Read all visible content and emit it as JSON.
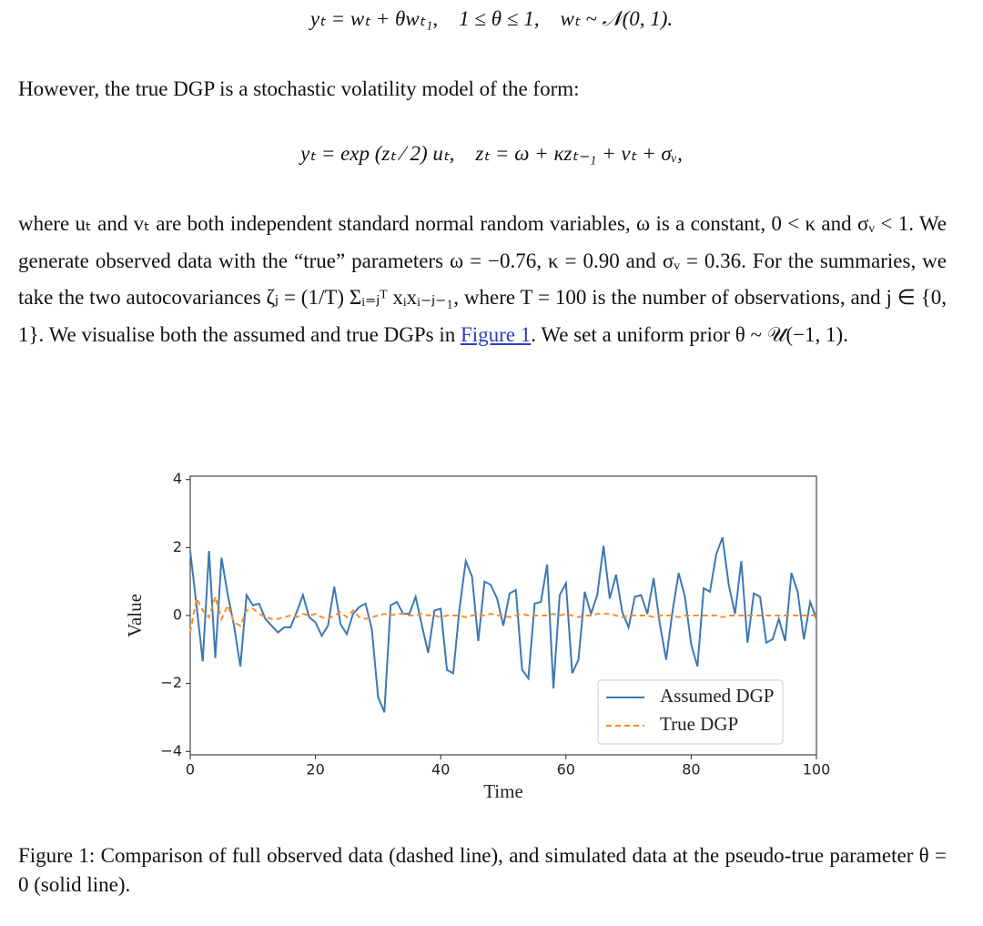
{
  "equations": [
    "yₜ = wₜ + θwₜ₁,    1 ≤ θ ≤ 1,    wₜ ~ 𝒩(0, 1).",
    "yₜ = exp (zₜ ⁄ 2) uₜ,    zₜ = ω + κzₜ₋₁ + vₜ + σᵥ,"
  ],
  "paragraphs": [
    "However, the true DGP is a stochastic volatility model of the form:",
    {
      "before": "where uₜ and vₜ are both independent standard normal random variables, ω is a constant, 0 < κ and σᵥ < 1.  We generate observed data with the “true” parameters ω = −0.76, κ = 0.90 and σᵥ = 0.36. For the summaries, we take the two autocovariances ζⱼ = (1/T) Σᵢ₌ⱼᵀ xᵢxᵢ₋ⱼ₋₁, where T = 100 is the number of observations, and j ∈ {0, 1}. We visualise both the assumed and true DGPs in ",
      "link": "Figure 1",
      "after": ".  We set a uniform prior θ ~ 𝒰(−1, 1)."
    }
  ],
  "chart_data": {
    "type": "line",
    "xlabel": "Time",
    "ylabel": "Value",
    "xlim": [
      0,
      100
    ],
    "xticks": [
      0,
      20,
      40,
      60,
      80,
      100
    ],
    "ylim": [
      -4.1,
      4.1
    ],
    "yticks": [
      {
        "value": -4,
        "label": "−4"
      },
      {
        "value": -2,
        "label": "−2"
      },
      0,
      2,
      4
    ],
    "legend": "lower right",
    "x": [
      0,
      1,
      2,
      3,
      4,
      5,
      6,
      7,
      8,
      9,
      10,
      11,
      12,
      13,
      14,
      15,
      16,
      17,
      18,
      19,
      20,
      21,
      22,
      23,
      24,
      25,
      26,
      27,
      28,
      29,
      30,
      31,
      32,
      33,
      34,
      35,
      36,
      37,
      38,
      39,
      40,
      41,
      42,
      43,
      44,
      45,
      46,
      47,
      48,
      49,
      50,
      51,
      52,
      53,
      54,
      55,
      56,
      57,
      58,
      59,
      60,
      61,
      62,
      63,
      64,
      65,
      66,
      67,
      68,
      69,
      70,
      71,
      72,
      73,
      74,
      75,
      76,
      77,
      78,
      79,
      80,
      81,
      82,
      83,
      84,
      85,
      86,
      87,
      88,
      89,
      90,
      91,
      92,
      93,
      94,
      95,
      96,
      97,
      98,
      99,
      100
    ],
    "series": [
      {
        "name": "Assumed DGP",
        "color": "#3c78b4",
        "dash": false,
        "values": [
          1.9,
          0.3,
          -1.35,
          1.9,
          -1.25,
          1.7,
          0.6,
          -0.3,
          -1.5,
          0.6,
          0.3,
          0.35,
          -0.1,
          -0.3,
          -0.5,
          -0.35,
          -0.35,
          0.1,
          0.6,
          -0.05,
          -0.2,
          -0.6,
          -0.3,
          0.85,
          -0.25,
          -0.55,
          0.05,
          0.25,
          0.35,
          -0.4,
          -2.4,
          -2.85,
          0.3,
          0.4,
          0.05,
          0.05,
          0.55,
          -0.3,
          -1.1,
          0.15,
          0.2,
          -1.6,
          -1.7,
          0.2,
          1.6,
          1.15,
          -0.75,
          1.0,
          0.9,
          0.5,
          -0.3,
          0.65,
          0.75,
          -1.6,
          -1.85,
          0.35,
          0.4,
          1.5,
          -2.15,
          0.6,
          0.95,
          -1.7,
          -1.3,
          0.7,
          0.05,
          0.6,
          2.05,
          0.5,
          1.2,
          0.1,
          -0.35,
          0.55,
          0.6,
          0.05,
          1.1,
          -0.25,
          -1.3,
          0.1,
          1.25,
          0.55,
          -0.85,
          -1.5,
          0.8,
          0.7,
          1.8,
          2.3,
          0.9,
          0.05,
          1.6,
          -0.8,
          0.65,
          0.55,
          -0.8,
          -0.7,
          -0.1,
          -0.75,
          1.25,
          0.7,
          -0.7,
          0.4,
          -0.1
        ]
      },
      {
        "name": "True DGP",
        "color": "#ff8c28",
        "dash": true,
        "values": [
          -0.5,
          0.5,
          0.15,
          -0.05,
          0.55,
          -0.1,
          0.3,
          -0.2,
          -0.3,
          0.15,
          0.2,
          0.05,
          -0.05,
          -0.1,
          -0.1,
          -0.05,
          0.0,
          -0.05,
          0.05,
          0.0,
          0.05,
          -0.05,
          -0.1,
          0.0,
          0.1,
          -0.05,
          0.15,
          -0.05,
          -0.1,
          -0.05,
          0.0,
          0.05,
          0.0,
          0.05,
          0.05,
          0.0,
          0.0,
          0.05,
          0.0,
          0.0,
          -0.05,
          0.0,
          0.0,
          0.0,
          -0.05,
          0.0,
          0.0,
          0.0,
          0.05,
          0.0,
          0.0,
          -0.05,
          0.0,
          0.05,
          0.0,
          0.0,
          0.0,
          0.0,
          0.05,
          0.0,
          0.05,
          0.0,
          -0.05,
          0.0,
          0.0,
          0.05,
          0.05,
          0.05,
          0.0,
          -0.05,
          0.0,
          0.0,
          0.0,
          0.0,
          -0.05,
          0.0,
          0.0,
          0.0,
          -0.05,
          0.0,
          0.0,
          0.0,
          0.0,
          0.0,
          0.0,
          -0.05,
          0.0,
          0.0,
          0.0,
          0.0,
          0.0,
          0.0,
          0.0,
          0.0,
          0.0,
          0.0,
          0.0,
          0.0,
          0.0,
          0.0,
          0.0
        ]
      }
    ]
  },
  "caption": "Figure 1:  Comparison of full observed data (dashed line), and simulated data at the pseudo-true parameter θ = 0 (solid line)."
}
